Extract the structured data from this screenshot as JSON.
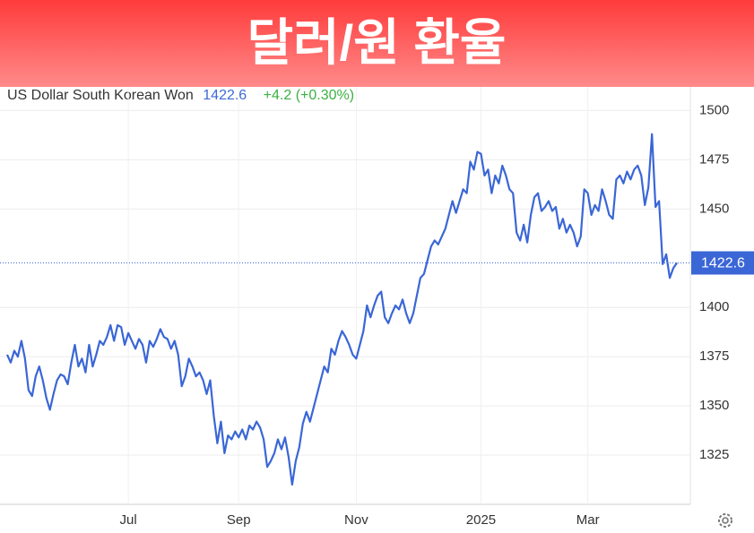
{
  "chart_data": {
    "type": "line",
    "title": "달러/원 환율",
    "change_label": "+4.2 (+0.30%)",
    "categories": [
      null,
      null,
      null,
      null,
      null,
      null,
      null,
      null,
      null,
      null,
      null,
      null,
      null,
      null,
      null,
      null,
      null,
      null,
      null,
      null,
      null,
      null,
      null,
      null,
      null,
      null,
      null,
      null,
      null,
      null,
      null,
      null,
      null,
      null,
      "Jul",
      null,
      null,
      null,
      null,
      null,
      null,
      null,
      null,
      null,
      null,
      null,
      null,
      null,
      null,
      null,
      null,
      null,
      null,
      null,
      null,
      null,
      null,
      null,
      null,
      null,
      null,
      null,
      null,
      null,
      null,
      "Sep",
      null,
      null,
      null,
      null,
      null,
      null,
      null,
      null,
      null,
      null,
      null,
      null,
      null,
      null,
      null,
      null,
      null,
      null,
      null,
      null,
      null,
      null,
      null,
      null,
      null,
      null,
      null,
      null,
      null,
      null,
      null,
      null,
      "Nov",
      null,
      null,
      null,
      null,
      null,
      null,
      null,
      null,
      null,
      null,
      null,
      null,
      null,
      null,
      null,
      null,
      null,
      null,
      null,
      null,
      null,
      null,
      null,
      null,
      null,
      null,
      null,
      null,
      null,
      null,
      null,
      null,
      null,
      null,
      "2025",
      null,
      null,
      null,
      null,
      null,
      null,
      null,
      null,
      null,
      null,
      null,
      null,
      null,
      null,
      null,
      null,
      null,
      null,
      null,
      null,
      null,
      null,
      null,
      null,
      null,
      null,
      null,
      null,
      null,
      "Mar",
      null,
      null,
      null,
      null,
      null,
      null,
      null,
      null,
      null,
      null,
      null,
      null,
      null,
      null,
      null,
      null,
      null,
      null,
      null,
      null,
      null,
      null,
      null,
      null,
      null
    ],
    "series": [
      {
        "name": "US Dollar South Korean Won",
        "color": "#3a66d6",
        "values": [
          1376,
          1372,
          1378,
          1375,
          1383,
          1374,
          1358,
          1355,
          1365,
          1370,
          1363,
          1354,
          1348,
          1356,
          1363,
          1366,
          1365,
          1361,
          1372,
          1381,
          1370,
          1374,
          1367,
          1381,
          1370,
          1376,
          1383,
          1381,
          1385,
          1391,
          1383,
          1391,
          1390,
          1381,
          1387,
          1383,
          1379,
          1384,
          1381,
          1372,
          1383,
          1380,
          1384,
          1389,
          1385,
          1384,
          1379,
          1383,
          1376,
          1360,
          1365,
          1374,
          1370,
          1365,
          1367,
          1363,
          1356,
          1363,
          1345,
          1331,
          1342,
          1326,
          1335,
          1333,
          1337,
          1334,
          1338,
          1333,
          1340,
          1338,
          1342,
          1339,
          1333,
          1319,
          1322,
          1326,
          1333,
          1328,
          1334,
          1324,
          1310,
          1322,
          1329,
          1341,
          1347,
          1342,
          1349,
          1356,
          1363,
          1370,
          1367,
          1379,
          1376,
          1383,
          1388,
          1385,
          1381,
          1376,
          1374,
          1381,
          1388,
          1401,
          1395,
          1401,
          1406,
          1408,
          1395,
          1392,
          1397,
          1401,
          1399,
          1404,
          1397,
          1392,
          1397,
          1406,
          1415,
          1417,
          1424,
          1431,
          1434,
          1432,
          1436,
          1440,
          1447,
          1454,
          1448,
          1454,
          1460,
          1458,
          1474,
          1470,
          1479,
          1478,
          1467,
          1470,
          1458,
          1467,
          1463,
          1472,
          1467,
          1460,
          1458,
          1438,
          1434,
          1442,
          1433,
          1447,
          1456,
          1458,
          1449,
          1451,
          1454,
          1449,
          1451,
          1440,
          1445,
          1438,
          1442,
          1438,
          1431,
          1436,
          1460,
          1458,
          1447,
          1452,
          1449,
          1460,
          1454,
          1447,
          1445,
          1465,
          1467,
          1463,
          1469,
          1465,
          1470,
          1472,
          1467,
          1452,
          1461,
          1488,
          1451,
          1454,
          1422,
          1427,
          1415,
          1420,
          1422.6
        ]
      }
    ],
    "ylim": [
      1300,
      1512
    ],
    "yticks": [
      1325,
      1350,
      1375,
      1400,
      1450,
      1475,
      1500
    ],
    "grid": true
  }
}
